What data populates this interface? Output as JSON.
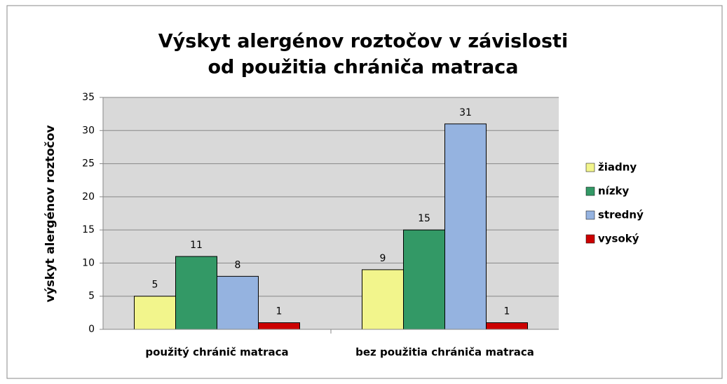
{
  "chart_data": {
    "type": "bar",
    "title": "Výskyt alergénov roztočov v závislosti od použitia chrániča matraca",
    "title_lines": [
      "Výskyt alergénov roztočov v závislosti",
      "od použitia chrániča matraca"
    ],
    "y_label": "výskyt alergénov roztočov",
    "categories": [
      "použitý chránič matraca",
      "bez použitia chrániča matraca"
    ],
    "series": [
      {
        "name": "žiadny",
        "color": "#f2f58c",
        "values": [
          5,
          9
        ]
      },
      {
        "name": "nízky",
        "color": "#339966",
        "values": [
          11,
          15
        ]
      },
      {
        "name": "stredný",
        "color": "#95b3e0",
        "values": [
          8,
          31
        ]
      },
      {
        "name": "vysoký",
        "color": "#cc0000",
        "values": [
          1,
          1
        ]
      }
    ],
    "ylim": [
      0,
      35
    ],
    "yticks": [
      0,
      5,
      10,
      15,
      20,
      25,
      30,
      35
    ],
    "grid": true,
    "legend": "right"
  }
}
